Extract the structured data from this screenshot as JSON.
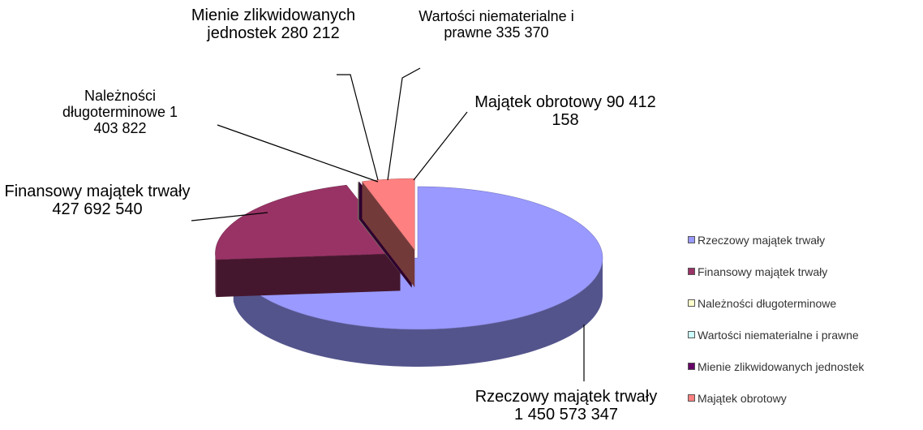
{
  "chart_data": {
    "type": "pie3d",
    "categories": [
      "Rzeczowy majątek trwały",
      "Finansowy majątek trwały",
      "Należności długoterminowe",
      "Wartości niematerialne i prawne",
      "Mienie zlikwidowanych jednostek",
      "Majątek obrotowy"
    ],
    "values": [
      1450573347,
      427692540,
      1403822,
      335370,
      280212,
      90412158
    ],
    "value_labels": [
      "1 450 573 347",
      "427 692 540",
      "1 403 822",
      "335 370",
      "280 212",
      "90 412 158"
    ],
    "colors": [
      "#9999ff",
      "#993366",
      "#ffffcc",
      "#ccffff",
      "#660066",
      "#ff8080"
    ],
    "legend": "right"
  }
}
